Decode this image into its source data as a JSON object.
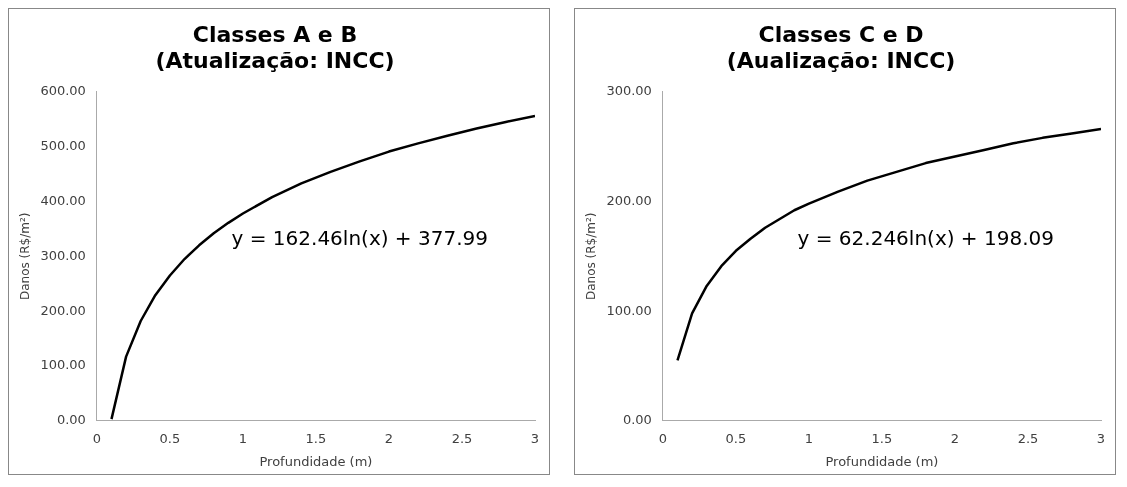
{
  "chart_data": [
    {
      "type": "line",
      "title": "Classes A e B\n(Atualização: INCC)",
      "xlabel": "Profundidade (m)",
      "ylabel": "Danos (R$/m²)",
      "annotations": [
        "y = 162.46ln(x) + 377.99"
      ],
      "x": [
        0.1,
        0.2,
        0.3,
        0.4,
        0.5,
        0.6,
        0.7,
        0.8,
        0.9,
        1.0,
        1.2,
        1.4,
        1.6,
        1.8,
        2.0,
        2.2,
        2.4,
        2.6,
        2.8,
        3.0
      ],
      "series": [
        {
          "color": "#000000",
          "values": [
            3,
            117,
            182,
            229,
            265,
            295,
            320,
            342,
            361,
            378,
            408,
            433,
            454,
            473,
            491,
            506,
            520,
            533,
            545,
            556
          ]
        }
      ],
      "xlim": [
        0,
        3
      ],
      "xticks": [
        0,
        0.5,
        1,
        1.5,
        2,
        2.5,
        3
      ],
      "ylim": [
        0,
        600
      ],
      "yticks": [
        {
          "value": 0,
          "label": "0.00"
        },
        {
          "value": 100,
          "label": "100.00"
        },
        {
          "value": 200,
          "label": "200.00"
        },
        {
          "value": 300,
          "label": "300.00"
        },
        {
          "value": 400,
          "label": "400.00"
        },
        {
          "value": 500,
          "label": "500.00"
        },
        {
          "value": 600,
          "label": "600.00"
        }
      ],
      "grid": false,
      "legend": false,
      "marker": "none",
      "line_style": "solid"
    },
    {
      "type": "line",
      "title": "Classes C e D\n(Aualização: INCC)",
      "xlabel": "Profundidade (m)",
      "ylabel": "Danos (R$/m²)",
      "annotations": [
        "y = 62.246ln(x) + 198.09"
      ],
      "x": [
        0.1,
        0.2,
        0.3,
        0.4,
        0.5,
        0.6,
        0.7,
        0.8,
        0.9,
        1.0,
        1.2,
        1.4,
        1.6,
        1.8,
        2.0,
        2.2,
        2.4,
        2.6,
        2.8,
        3.0
      ],
      "series": [
        {
          "color": "#000000",
          "values": [
            55,
            98,
            123,
            141,
            155,
            166,
            176,
            184,
            192,
            198,
            209,
            219,
            227,
            235,
            241,
            247,
            253,
            258,
            262,
            266
          ]
        }
      ],
      "xlim": [
        0,
        3
      ],
      "xticks": [
        0,
        0.5,
        1,
        1.5,
        2,
        2.5,
        3
      ],
      "ylim": [
        0,
        300
      ],
      "yticks": [
        {
          "value": 0,
          "label": "0.00"
        },
        {
          "value": 100,
          "label": "100.00"
        },
        {
          "value": 200,
          "label": "200.00"
        },
        {
          "value": 300,
          "label": "300.00"
        }
      ],
      "grid": false,
      "legend": false,
      "marker": "none",
      "line_style": "solid"
    }
  ]
}
